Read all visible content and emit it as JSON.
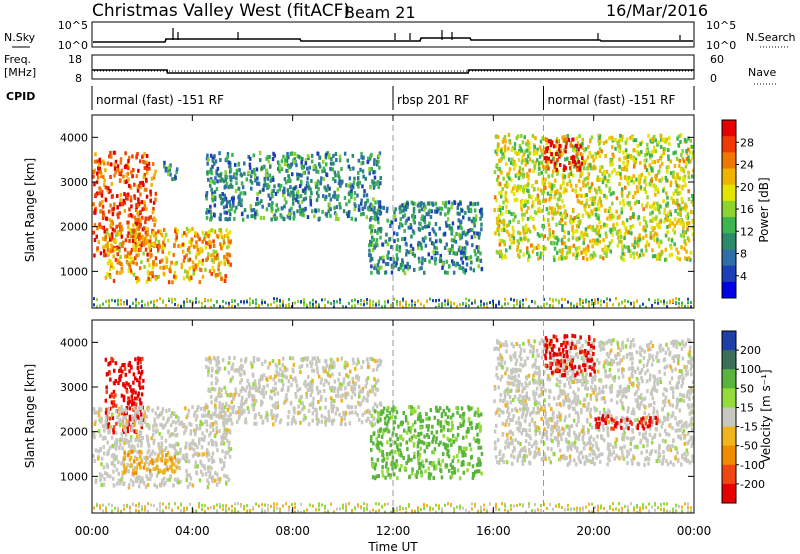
{
  "header": {
    "title": "Christmas Valley West (fitACF)",
    "beam": "Beam 21",
    "date": "16/Mar/2016"
  },
  "sky_panel": {
    "left_label": "N.Sky",
    "right_label": "N.Search",
    "left_ticks": [
      "10^5",
      "10^0"
    ],
    "right_ticks": [
      "10^5",
      "10^0"
    ]
  },
  "freq_panel": {
    "left_label_1": "Freq.",
    "left_label_2": "[MHz]",
    "right_label": "Nave",
    "left_ticks": [
      "18",
      "8"
    ],
    "right_ticks": [
      "60",
      "0"
    ]
  },
  "cpid": {
    "label": "CPID",
    "segments": [
      {
        "name": "normal (fast) -151 RF",
        "start_hour": 0
      },
      {
        "name": "rbsp 201 RF",
        "start_hour": 12
      },
      {
        "name": "normal (fast) -151 RF",
        "start_hour": 18
      }
    ],
    "boundaries_hours": [
      12,
      18
    ]
  },
  "power_panel": {
    "ylabel": "Slant Range [km]",
    "yticks": [
      "4000",
      "3000",
      "2000",
      "1000"
    ],
    "cbar_label": "Power [dB]",
    "cbar_ticks": [
      "28",
      "24",
      "20",
      "16",
      "12",
      "8",
      "4"
    ],
    "cbar_colors": [
      "#e60000",
      "#f03a00",
      "#f07800",
      "#f0b400",
      "#e4e400",
      "#8ed430",
      "#3cb450",
      "#2a8a6a",
      "#2e6fa8",
      "#1c3fb8",
      "#0000e0"
    ]
  },
  "velocity_panel": {
    "ylabel": "Slant Range [km]",
    "yticks": [
      "4000",
      "3000",
      "2000",
      "1000"
    ],
    "cbar_label": "Velocity [m s⁻¹]",
    "cbar_ticks": [
      "200",
      "100",
      "50",
      "15",
      "-15",
      "-50",
      "-100",
      "-200"
    ],
    "cbar_colors": [
      "#1e3ea8",
      "#3c6e5a",
      "#58b43c",
      "#94dc3c",
      "#c8c8c0",
      "#f0b41e",
      "#f08c00",
      "#f04614",
      "#e60000"
    ]
  },
  "xaxis": {
    "label": "Time UT",
    "ticks": [
      "00:00",
      "04:00",
      "08:00",
      "12:00",
      "16:00",
      "20:00",
      "00:00"
    ]
  },
  "chart_data": {
    "type": "heatmap",
    "title": "Christmas Valley West (fitACF)  Beam 21  16/Mar/2016",
    "xlabel": "Time UT",
    "ylabel": "Slant Range [km]",
    "xlim_hours": [
      0,
      24
    ],
    "ylim_km": [
      180,
      4500
    ],
    "freq_mhz_series": [
      {
        "start_hour": 0,
        "end_hour": 3,
        "value": 11.5
      },
      {
        "start_hour": 3,
        "end_hour": 15,
        "value": 10.0
      },
      {
        "start_hour": 15,
        "end_hour": 24,
        "value": 11.5
      }
    ],
    "power_echo_regions": [
      {
        "t_start": 0.0,
        "t_end": 2.5,
        "r_start": 1400,
        "r_end": 3700,
        "power_db": 24
      },
      {
        "t_start": 0.5,
        "t_end": 5.5,
        "r_start": 800,
        "r_end": 2000,
        "power_db": 20
      },
      {
        "t_start": 2.8,
        "t_end": 3.5,
        "r_start": 3100,
        "r_end": 3500,
        "power_db": 8
      },
      {
        "t_start": 4.5,
        "t_end": 11.5,
        "r_start": 2200,
        "r_end": 3700,
        "power_db": 8
      },
      {
        "t_start": 11.0,
        "t_end": 15.5,
        "r_start": 1000,
        "r_end": 2600,
        "power_db": 8
      },
      {
        "t_start": 16.0,
        "t_end": 24.0,
        "r_start": 1300,
        "r_end": 4100,
        "power_db": 16
      },
      {
        "t_start": 18.0,
        "t_end": 19.5,
        "r_start": 3300,
        "r_end": 4000,
        "power_db": 28
      }
    ],
    "velocity_echo_regions": [
      {
        "t_start": 0.5,
        "t_end": 2.0,
        "r_start": 2000,
        "r_end": 3700,
        "velocity_ms": -200
      },
      {
        "t_start": 0.0,
        "t_end": 5.5,
        "r_start": 800,
        "r_end": 2600,
        "velocity_ms": 0
      },
      {
        "t_start": 1.2,
        "t_end": 3.5,
        "r_start": 1100,
        "r_end": 1600,
        "velocity_ms": -50
      },
      {
        "t_start": 4.5,
        "t_end": 11.5,
        "r_start": 2200,
        "r_end": 3700,
        "velocity_ms": 0
      },
      {
        "t_start": 11.0,
        "t_end": 15.5,
        "r_start": 1000,
        "r_end": 2600,
        "velocity_ms": 50
      },
      {
        "t_start": 16.0,
        "t_end": 24.0,
        "r_start": 1300,
        "r_end": 4100,
        "velocity_ms": 0
      },
      {
        "t_start": 18.0,
        "t_end": 20.0,
        "r_start": 3300,
        "r_end": 4200,
        "velocity_ms": -200
      },
      {
        "t_start": 20.0,
        "t_end": 22.5,
        "r_start": 2100,
        "r_end": 2400,
        "velocity_ms": -200
      }
    ]
  }
}
